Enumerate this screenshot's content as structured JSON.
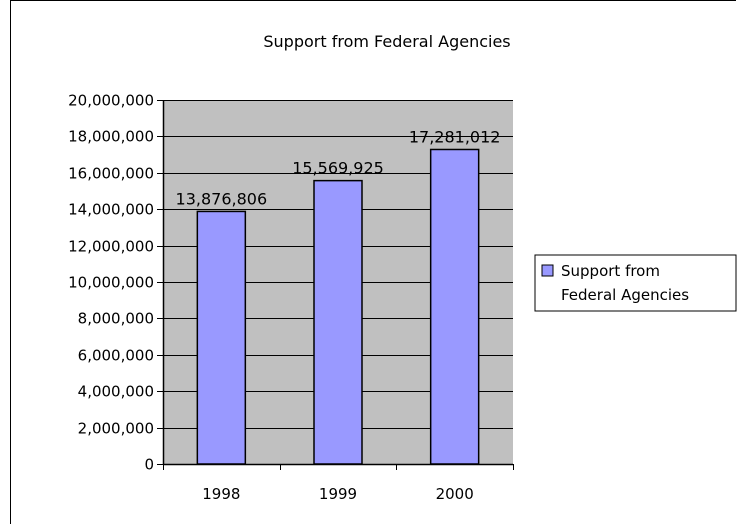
{
  "chart_data": {
    "type": "bar",
    "title": "Support from Federal Agencies",
    "categories": [
      "1998",
      "1999",
      "2000"
    ],
    "series": [
      {
        "name": "Support from Federal Agencies",
        "values": [
          13876806,
          15569925,
          17281012
        ]
      }
    ],
    "value_labels": [
      "13,876,806",
      "15,569,925",
      "17,281,012"
    ],
    "ylim": [
      0,
      20000000
    ],
    "y_ticks": [
      0,
      2000000,
      4000000,
      6000000,
      8000000,
      10000000,
      12000000,
      14000000,
      16000000,
      18000000,
      20000000
    ],
    "y_tick_labels": [
      "0",
      "2,000,000",
      "4,000,000",
      "6,000,000",
      "8,000,000",
      "10,000,000",
      "12,000,000",
      "14,000,000",
      "16,000,000",
      "18,000,000",
      "20,000,000"
    ],
    "xlabel": "",
    "ylabel": "",
    "grid": true,
    "legend_position": "right",
    "legend_lines": [
      "Support from",
      "Federal Agencies"
    ],
    "colors": {
      "bar": "#9999ff",
      "plot_background": "#c0c0c0",
      "gridline": "#000000"
    }
  }
}
